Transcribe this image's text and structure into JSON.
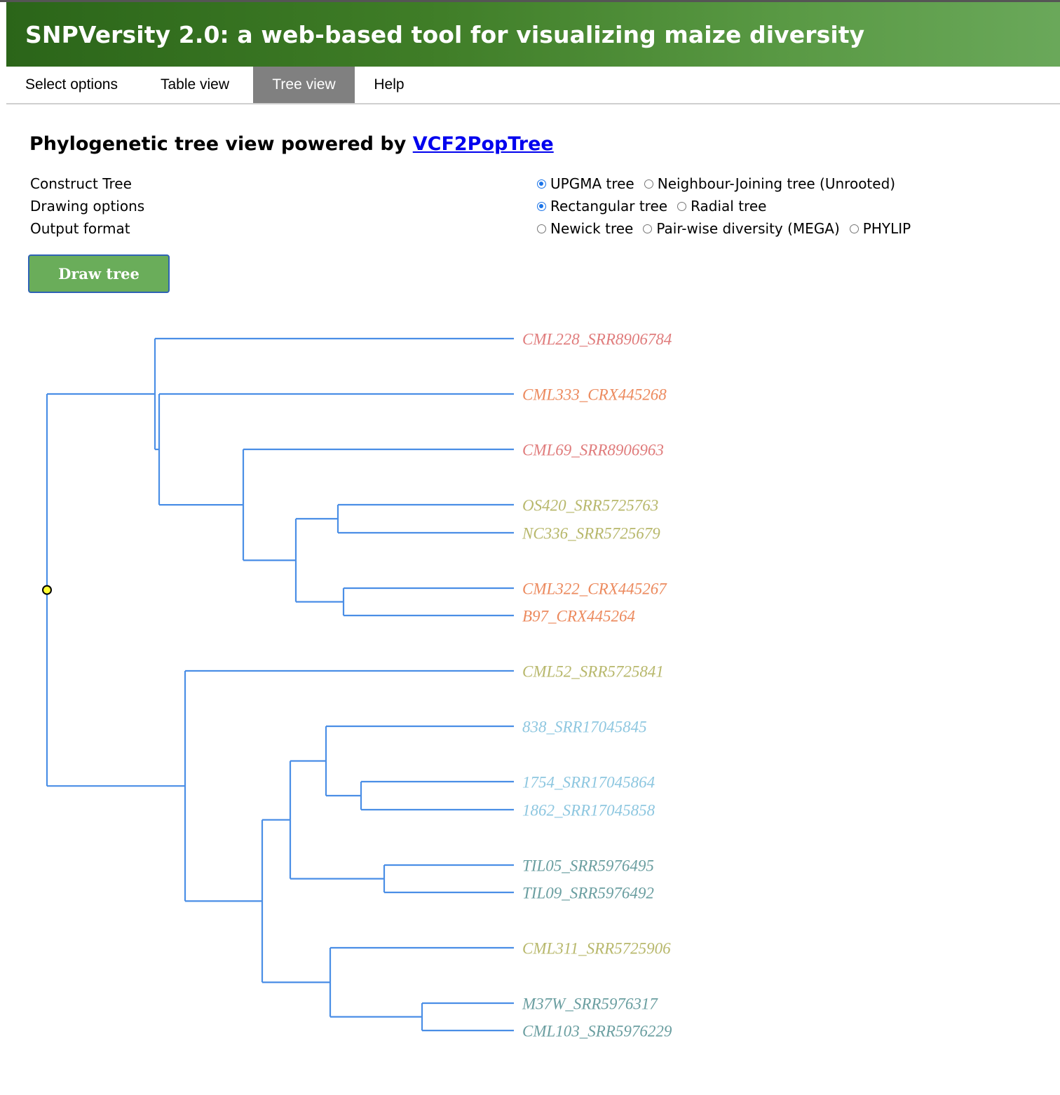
{
  "header": {
    "title": "SNPVersity 2.0: a web-based tool for visualizing maize diversity"
  },
  "nav": {
    "tabs": [
      {
        "label": "Select options",
        "active": false
      },
      {
        "label": "Table view",
        "active": false
      },
      {
        "label": "Tree view",
        "active": true
      },
      {
        "label": "Help",
        "active": false
      }
    ]
  },
  "main": {
    "title_prefix": "Phylogenetic tree view powered by ",
    "title_link": "VCF2PopTree",
    "options": [
      {
        "label": "Construct Tree",
        "choices": [
          {
            "label": "UPGMA tree",
            "checked": true
          },
          {
            "label": "Neighbour-Joining tree (Unrooted)",
            "checked": false
          }
        ]
      },
      {
        "label": "Drawing options",
        "choices": [
          {
            "label": "Rectangular tree",
            "checked": true
          },
          {
            "label": "Radial tree",
            "checked": false
          }
        ]
      },
      {
        "label": "Output format",
        "choices": [
          {
            "label": "Newick tree",
            "checked": false
          },
          {
            "label": "Pair-wise diversity (MEGA)",
            "checked": false
          },
          {
            "label": "PHYLIP",
            "checked": false
          }
        ]
      }
    ],
    "draw_button": "Draw tree"
  },
  "tree": {
    "branch_color": "#4a8ee6",
    "root_marker_color": "#ffff33",
    "leaves": [
      {
        "name": "CML228_SRR8906784",
        "color": "#e07c7c"
      },
      {
        "name": "CML333_CRX445268",
        "color": "#ec8a5e"
      },
      {
        "name": "CML69_SRR8906963",
        "color": "#e07c7c"
      },
      {
        "name": "OS420_SRR5725763",
        "color": "#b8b86c"
      },
      {
        "name": "NC336_SRR5725679",
        "color": "#b8b86c"
      },
      {
        "name": "CML322_CRX445267",
        "color": "#ec8a5e"
      },
      {
        "name": "B97_CRX445264",
        "color": "#ec8a5e"
      },
      {
        "name": "CML52_SRR5725841",
        "color": "#b8b86c"
      },
      {
        "name": "838_SRR17045845",
        "color": "#8ec7e0"
      },
      {
        "name": "1754_SRR17045864",
        "color": "#8ec7e0"
      },
      {
        "name": "1862_SRR17045858",
        "color": "#8ec7e0"
      },
      {
        "name": "TIL05_SRR5976495",
        "color": "#6a9ea0"
      },
      {
        "name": "TIL09_SRR5976492",
        "color": "#6a9ea0"
      },
      {
        "name": "CML311_SRR5725906",
        "color": "#b8b86c"
      },
      {
        "name": "M37W_SRR5976317",
        "color": "#6a9ea0"
      },
      {
        "name": "CML103_SRR5976229",
        "color": "#6a9ea0"
      }
    ]
  }
}
